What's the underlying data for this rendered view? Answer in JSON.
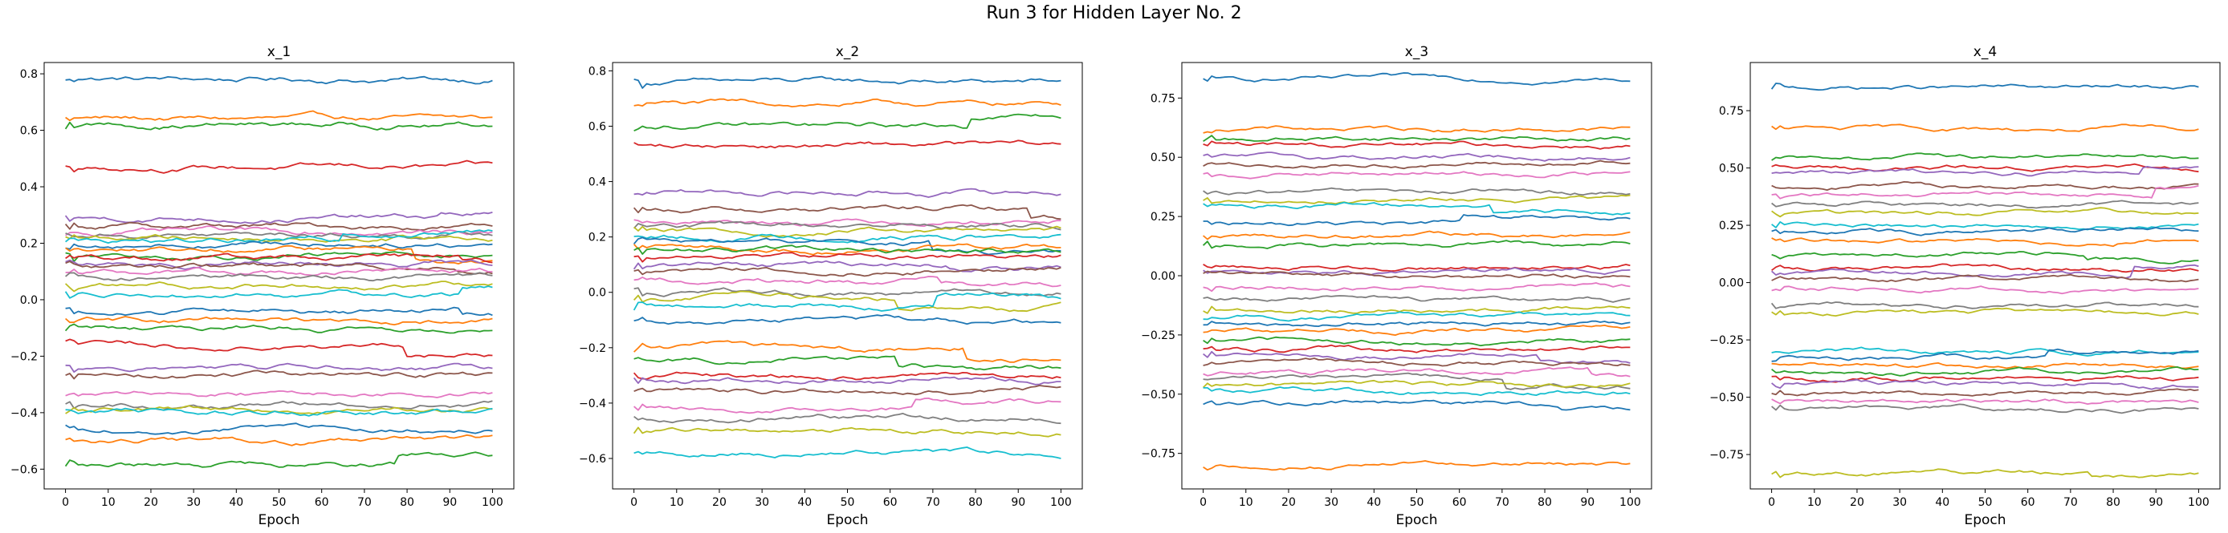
{
  "figure": {
    "title": "Run 3 for Hidden Layer No. 2"
  },
  "palette": [
    "#1f77b4",
    "#ff7f0e",
    "#2ca02c",
    "#d62728",
    "#9467bd",
    "#8c564b",
    "#e377c2",
    "#7f7f7f",
    "#bcbd22",
    "#17becf"
  ],
  "chart_data": [
    {
      "type": "line",
      "title": "x_1",
      "xlabel": "Epoch",
      "ylabel": "",
      "xlim": [
        -5,
        105
      ],
      "ylim": [
        -0.67,
        0.84
      ],
      "xticks": [
        0,
        10,
        20,
        30,
        40,
        50,
        60,
        70,
        80,
        90,
        100
      ],
      "yticks": [
        -0.6,
        -0.4,
        -0.2,
        0.0,
        0.2,
        0.4,
        0.6,
        0.8
      ],
      "ytick_labels": [
        "−0.6",
        "−0.4",
        "−0.2",
        "0.0",
        "0.2",
        "0.4",
        "0.6",
        "0.8"
      ],
      "grid": false,
      "legend": "none",
      "series_levels": [
        0.78,
        0.64,
        0.62,
        0.47,
        0.29,
        0.26,
        0.24,
        0.23,
        0.22,
        0.21,
        0.2,
        0.18,
        0.16,
        0.15,
        0.13,
        0.12,
        0.1,
        0.08,
        0.05,
        0.02,
        -0.04,
        -0.07,
        -0.1,
        -0.16,
        -0.24,
        -0.27,
        -0.33,
        -0.37,
        -0.39,
        -0.4,
        -0.46,
        -0.5,
        -0.58
      ]
    },
    {
      "type": "line",
      "title": "x_2",
      "xlabel": "Epoch",
      "ylabel": "",
      "xlim": [
        -5,
        105
      ],
      "ylim": [
        -0.71,
        0.83
      ],
      "xticks": [
        0,
        10,
        20,
        30,
        40,
        50,
        60,
        70,
        80,
        90,
        100
      ],
      "yticks": [
        -0.6,
        -0.4,
        -0.2,
        0.0,
        0.2,
        0.4,
        0.6,
        0.8
      ],
      "ytick_labels": [
        "−0.6",
        "−0.4",
        "−0.2",
        "0.0",
        "0.2",
        "0.4",
        "0.6",
        "0.8"
      ],
      "grid": false,
      "legend": "none",
      "series_levels": [
        0.76,
        0.68,
        0.6,
        0.53,
        0.36,
        0.3,
        0.26,
        0.24,
        0.22,
        0.2,
        0.18,
        0.16,
        0.15,
        0.13,
        0.1,
        0.08,
        0.04,
        0.0,
        -0.02,
        -0.05,
        -0.1,
        -0.2,
        -0.24,
        -0.3,
        -0.32,
        -0.35,
        -0.42,
        -0.45,
        -0.5,
        -0.58
      ]
    },
    {
      "type": "line",
      "title": "x_3",
      "xlabel": "Epoch",
      "ylabel": "",
      "xlim": [
        -5,
        105
      ],
      "ylim": [
        -0.9,
        0.9
      ],
      "xticks": [
        0,
        10,
        20,
        30,
        40,
        50,
        60,
        70,
        80,
        90,
        100
      ],
      "yticks": [
        -0.75,
        -0.5,
        -0.25,
        0.0,
        0.25,
        0.5,
        0.75
      ],
      "ytick_labels": [
        "−0.75",
        "−0.50",
        "−0.25",
        "0.00",
        "0.25",
        "0.50",
        "0.75"
      ],
      "grid": false,
      "legend": "none",
      "series_levels": [
        0.83,
        0.62,
        0.58,
        0.55,
        0.5,
        0.47,
        0.43,
        0.35,
        0.32,
        0.3,
        0.22,
        0.17,
        0.13,
        0.04,
        0.02,
        0.0,
        -0.05,
        -0.1,
        -0.14,
        -0.17,
        -0.2,
        -0.23,
        -0.28,
        -0.31,
        -0.34,
        -0.37,
        -0.4,
        -0.43,
        -0.46,
        -0.49,
        -0.54,
        -0.8
      ]
    },
    {
      "type": "line",
      "title": "x_4",
      "xlabel": "Epoch",
      "ylabel": "",
      "xlim": [
        -5,
        105
      ],
      "ylim": [
        -0.9,
        0.96
      ],
      "xticks": [
        0,
        10,
        20,
        30,
        40,
        50,
        60,
        70,
        80,
        90,
        100
      ],
      "yticks": [
        -0.75,
        -0.5,
        -0.25,
        0.0,
        0.25,
        0.5,
        0.75
      ],
      "ytick_labels": [
        "−0.75",
        "−0.50",
        "−0.25",
        "0.00",
        "0.25",
        "0.50",
        "0.75"
      ],
      "grid": false,
      "legend": "none",
      "series_levels": [
        0.85,
        0.67,
        0.55,
        0.5,
        0.48,
        0.42,
        0.38,
        0.34,
        0.3,
        0.25,
        0.22,
        0.18,
        0.12,
        0.06,
        0.04,
        0.01,
        -0.03,
        -0.1,
        -0.13,
        -0.3,
        -0.33,
        -0.36,
        -0.39,
        -0.42,
        -0.45,
        -0.48,
        -0.52,
        -0.55,
        -0.83
      ]
    }
  ]
}
